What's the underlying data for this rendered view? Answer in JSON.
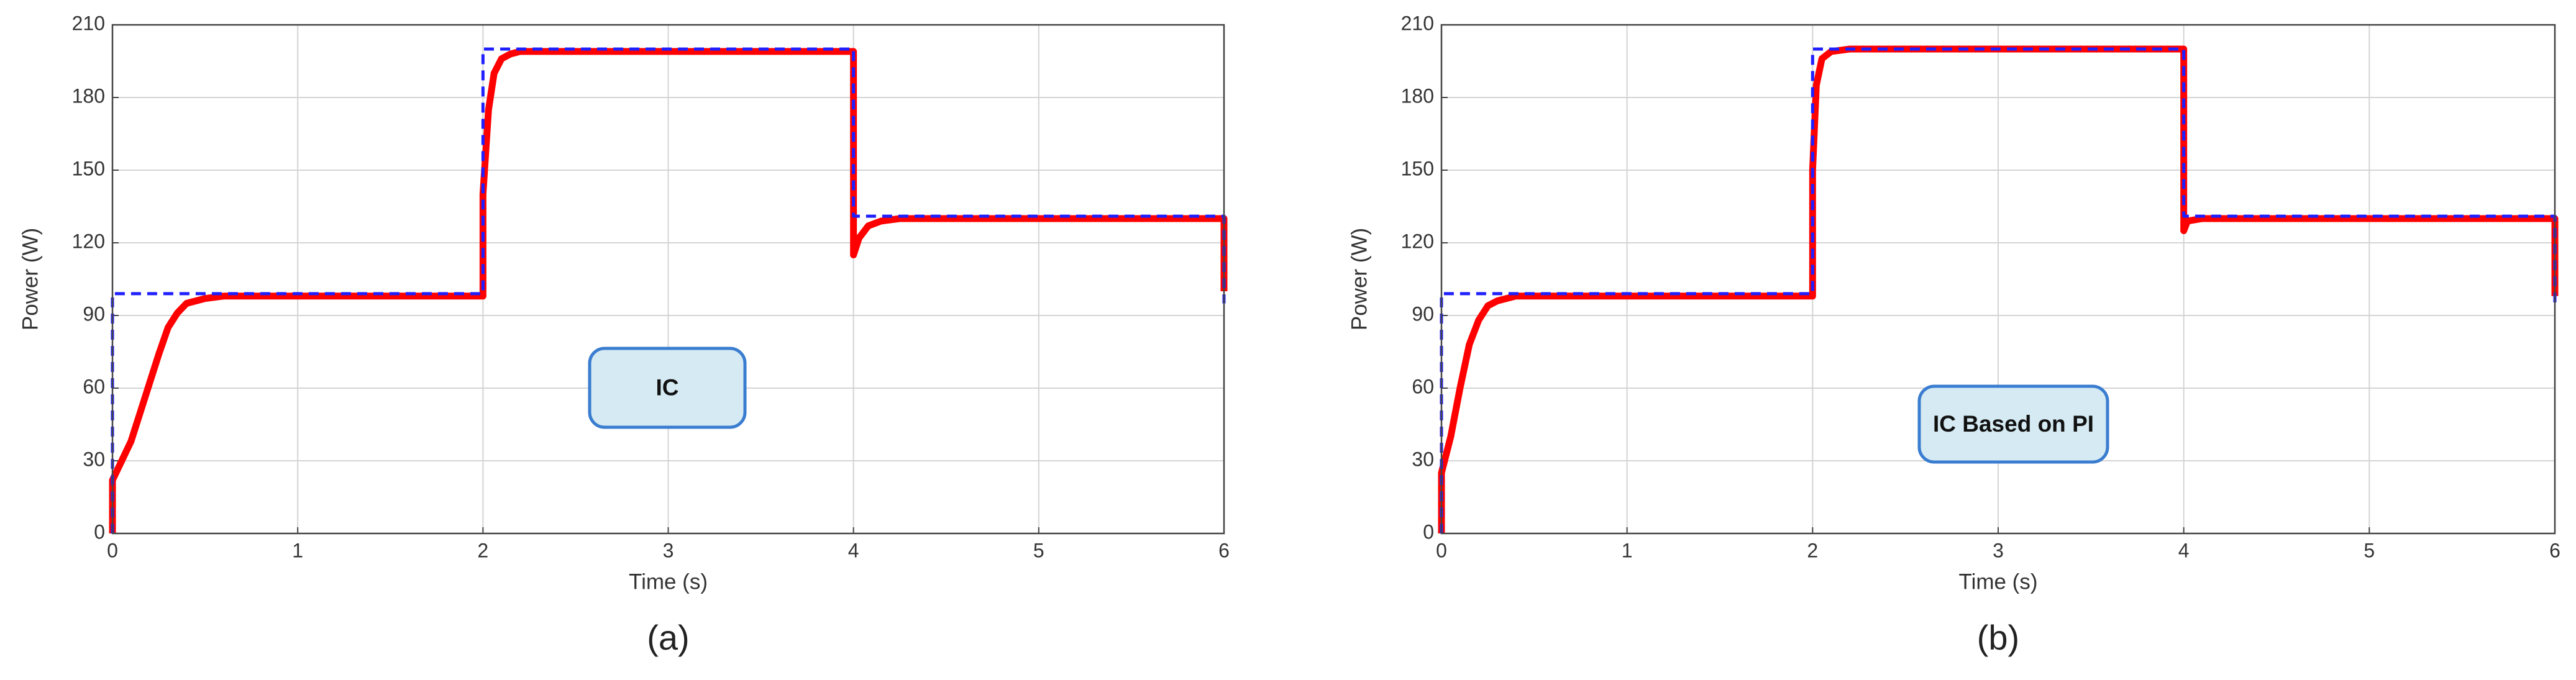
{
  "chart_data": [
    {
      "type": "line",
      "x_label": "Time (s)",
      "y_label": "Power (W)",
      "annotation": "IC",
      "caption": "(a)",
      "xlim": [
        0,
        6
      ],
      "ylim": [
        0,
        210
      ],
      "xticks": [
        0,
        1,
        2,
        3,
        4,
        5,
        6
      ],
      "yticks": [
        0,
        30,
        60,
        90,
        120,
        150,
        180,
        210
      ],
      "grid": true,
      "series": [
        {
          "color": "#ff0000",
          "linestyle": "solid",
          "x": [
            0,
            0,
            0.05,
            0.1,
            0.15,
            0.2,
            0.25,
            0.3,
            0.35,
            0.4,
            0.5,
            0.6,
            0.8,
            2,
            2,
            2.03,
            2.06,
            2.1,
            2.15,
            2.2,
            2.3,
            4,
            4,
            4.03,
            4.08,
            4.15,
            4.25,
            4.4,
            6,
            6
          ],
          "values": [
            0,
            22,
            30,
            38,
            50,
            62,
            74,
            85,
            91,
            95,
            97,
            98,
            98,
            98,
            140,
            175,
            190,
            196,
            198,
            199,
            199,
            199,
            115,
            122,
            127,
            129,
            130,
            130,
            130,
            100
          ]
        },
        {
          "color": "#1f1fff",
          "linestyle": "dashed",
          "x": [
            0,
            0,
            2,
            2,
            4,
            4,
            6,
            6
          ],
          "values": [
            0,
            99,
            99,
            200,
            200,
            131,
            131,
            95
          ]
        }
      ]
    },
    {
      "type": "line",
      "x_label": "Time (s)",
      "y_label": "Power (W)",
      "annotation": "IC Based on PI",
      "caption": "(b)",
      "xlim": [
        0,
        6
      ],
      "ylim": [
        0,
        210
      ],
      "xticks": [
        0,
        1,
        2,
        3,
        4,
        5,
        6
      ],
      "yticks": [
        0,
        30,
        60,
        90,
        120,
        150,
        180,
        210
      ],
      "grid": true,
      "series": [
        {
          "color": "#ff0000",
          "linestyle": "solid",
          "x": [
            0,
            0,
            0.05,
            0.1,
            0.15,
            0.2,
            0.25,
            0.3,
            0.4,
            0.6,
            2,
            2,
            2.02,
            2.05,
            2.1,
            2.2,
            4,
            4,
            4.02,
            4.1,
            6,
            6
          ],
          "values": [
            0,
            25,
            40,
            60,
            78,
            88,
            94,
            96,
            98,
            98,
            98,
            150,
            185,
            196,
            199,
            200,
            200,
            125,
            129,
            130,
            130,
            98
          ]
        },
        {
          "color": "#1f1fff",
          "linestyle": "dashed",
          "x": [
            0,
            0,
            2,
            2,
            4,
            4,
            6,
            6
          ],
          "values": [
            0,
            99,
            99,
            200,
            200,
            131,
            131,
            95
          ]
        }
      ]
    }
  ]
}
